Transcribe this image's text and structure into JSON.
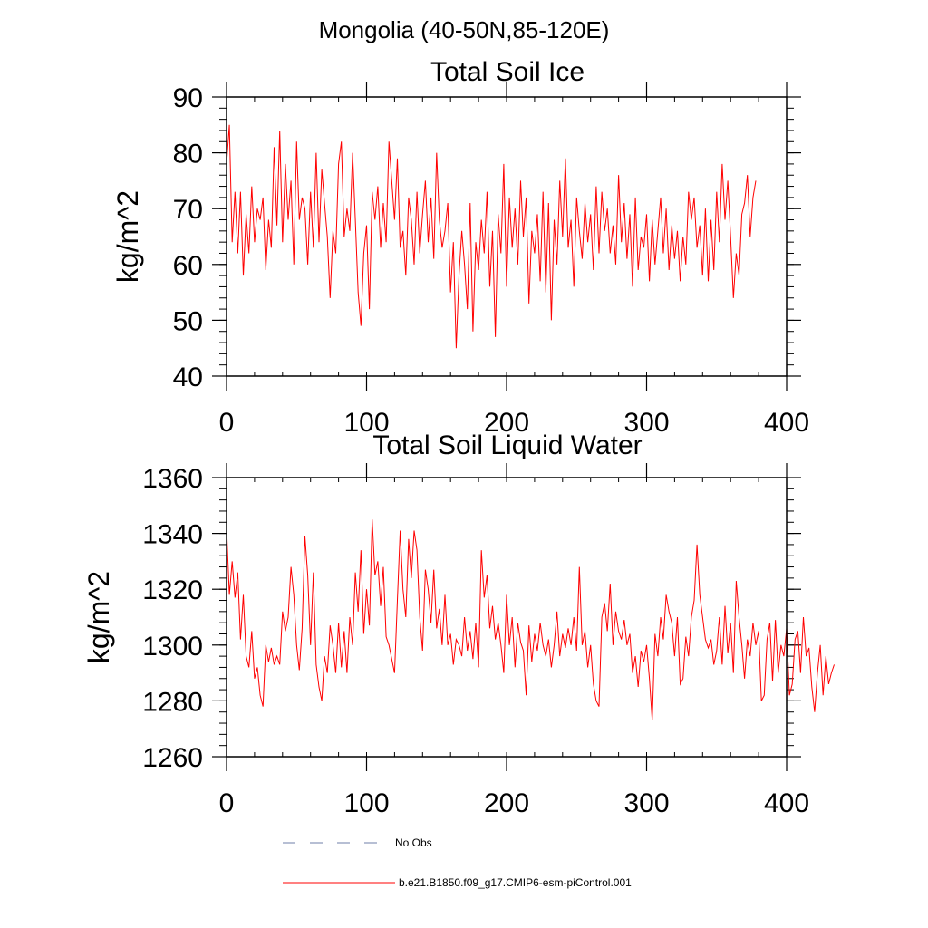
{
  "figure": {
    "title": "Mongolia (40-50N,85-120E)",
    "legend": [
      {
        "label": "No Obs",
        "color": "#6f7fa8",
        "style": "dashed"
      },
      {
        "label": "b.e21.B1850.f09_g17.CMIP6-esm-piControl.001",
        "color": "#ff0000",
        "style": "solid"
      }
    ]
  },
  "chart_data": [
    {
      "type": "line",
      "title": "Total Soil Ice",
      "xlabel": "",
      "ylabel": "kg/m^2",
      "xlim": [
        0,
        400
      ],
      "ylim": [
        40,
        90
      ],
      "xticks": [
        0,
        100,
        200,
        300,
        400
      ],
      "xtick_labels": [
        "0",
        "100",
        "200",
        "300",
        "400"
      ],
      "yticks": [
        40,
        50,
        60,
        70,
        80,
        90
      ],
      "ytick_labels": [
        "40",
        "50",
        "60",
        "70",
        "80",
        "90"
      ],
      "series": [
        {
          "name": "b.e21.B1850.f09_g17.CMIP6-esm-piControl.001",
          "color": "#ff0000",
          "x0": 0,
          "dx": 2,
          "values": [
            78,
            85,
            64,
            73,
            62,
            73,
            58,
            69,
            62,
            74,
            64,
            70,
            68,
            72,
            59,
            68,
            63,
            81,
            67,
            84,
            64,
            78,
            68,
            75,
            60,
            82,
            68,
            72,
            70,
            60,
            73,
            63,
            80,
            64,
            77,
            71,
            65,
            54,
            66,
            62,
            78,
            82,
            65,
            70,
            66,
            80,
            68,
            55,
            49,
            62,
            67,
            52,
            73,
            68,
            74,
            63,
            71,
            64,
            82,
            75,
            68,
            79,
            63,
            66,
            58,
            72,
            68,
            60,
            73,
            62,
            69,
            75,
            64,
            72,
            61,
            80,
            68,
            63,
            66,
            71,
            55,
            64,
            45,
            58,
            66,
            60,
            52,
            71,
            48,
            64,
            59,
            68,
            62,
            73,
            56,
            66,
            47,
            69,
            62,
            78,
            56,
            72,
            63,
            70,
            60,
            75,
            65,
            72,
            53,
            66,
            62,
            69,
            57,
            73,
            55,
            71,
            50,
            68,
            60,
            75,
            65,
            79,
            63,
            68,
            56,
            72,
            66,
            61,
            71,
            64,
            69,
            59,
            74,
            62,
            73,
            66,
            70,
            62,
            67,
            60,
            76,
            64,
            71,
            61,
            69,
            56,
            72,
            59,
            65,
            63,
            69,
            57,
            68,
            60,
            66,
            72,
            62,
            70,
            59,
            67,
            61,
            66,
            57,
            65,
            60,
            73,
            68,
            72,
            63,
            67,
            58,
            70,
            57,
            68,
            59,
            73,
            64,
            78,
            68,
            75,
            65,
            54,
            62,
            58,
            69,
            71,
            76,
            65,
            72,
            75
          ]
        }
      ]
    },
    {
      "type": "line",
      "title": "Total Soil Liquid Water",
      "xlabel": "",
      "ylabel": "kg/m^2",
      "xlim": [
        0,
        400
      ],
      "ylim": [
        1260,
        1360
      ],
      "xticks": [
        0,
        100,
        200,
        300,
        400
      ],
      "xtick_labels": [
        "0",
        "100",
        "200",
        "300",
        "400"
      ],
      "yticks": [
        1260,
        1280,
        1300,
        1320,
        1340,
        1360
      ],
      "ytick_labels": [
        "1260",
        "1280",
        "1300",
        "1320",
        "1340",
        "1360"
      ],
      "series": [
        {
          "name": "b.e21.B1850.f09_g17.CMIP6-esm-piControl.001",
          "color": "#ff0000",
          "x0": 0,
          "dx": 2,
          "values": [
            1342,
            1318,
            1330,
            1317,
            1326,
            1302,
            1318,
            1296,
            1292,
            1305,
            1288,
            1292,
            1282,
            1278,
            1300,
            1294,
            1299,
            1293,
            1296,
            1293,
            1312,
            1305,
            1310,
            1328,
            1318,
            1300,
            1291,
            1306,
            1339,
            1325,
            1300,
            1326,
            1293,
            1285,
            1280,
            1296,
            1290,
            1307,
            1300,
            1290,
            1308,
            1292,
            1305,
            1290,
            1310,
            1300,
            1326,
            1312,
            1334,
            1304,
            1320,
            1307,
            1345,
            1325,
            1330,
            1314,
            1328,
            1303,
            1300,
            1295,
            1290,
            1316,
            1341,
            1320,
            1310,
            1338,
            1324,
            1341,
            1334,
            1310,
            1298,
            1327,
            1320,
            1308,
            1327,
            1306,
            1313,
            1300,
            1318,
            1300,
            1304,
            1293,
            1302,
            1300,
            1296,
            1310,
            1298,
            1305,
            1295,
            1308,
            1292,
            1334,
            1317,
            1325,
            1306,
            1314,
            1302,
            1308,
            1300,
            1290,
            1318,
            1300,
            1310,
            1292,
            1308,
            1301,
            1298,
            1282,
            1307,
            1294,
            1304,
            1298,
            1308,
            1300,
            1296,
            1302,
            1292,
            1300,
            1312,
            1296,
            1304,
            1299,
            1306,
            1300,
            1310,
            1298,
            1328,
            1300,
            1305,
            1292,
            1300,
            1286,
            1280,
            1278,
            1310,
            1315,
            1305,
            1322,
            1300,
            1312,
            1305,
            1302,
            1309,
            1300,
            1304,
            1290,
            1296,
            1285,
            1298,
            1294,
            1300,
            1288,
            1273,
            1304,
            1296,
            1310,
            1302,
            1318,
            1312,
            1308,
            1296,
            1310,
            1286,
            1288,
            1303,
            1296,
            1310,
            1316,
            1336,
            1318,
            1310,
            1302,
            1299,
            1302,
            1293,
            1298,
            1310,
            1293,
            1314,
            1297,
            1308,
            1290,
            1323,
            1310,
            1300,
            1288,
            1302,
            1296,
            1308,
            1300,
            1305,
            1280,
            1282,
            1302,
            1308,
            1287,
            1309,
            1290,
            1300,
            1296,
            1306,
            1282,
            1286,
            1302,
            1305,
            1290,
            1310,
            1296,
            1299,
            1285,
            1276,
            1290,
            1300,
            1282,
            1296,
            1286,
            1290,
            1293
          ]
        }
      ]
    }
  ]
}
